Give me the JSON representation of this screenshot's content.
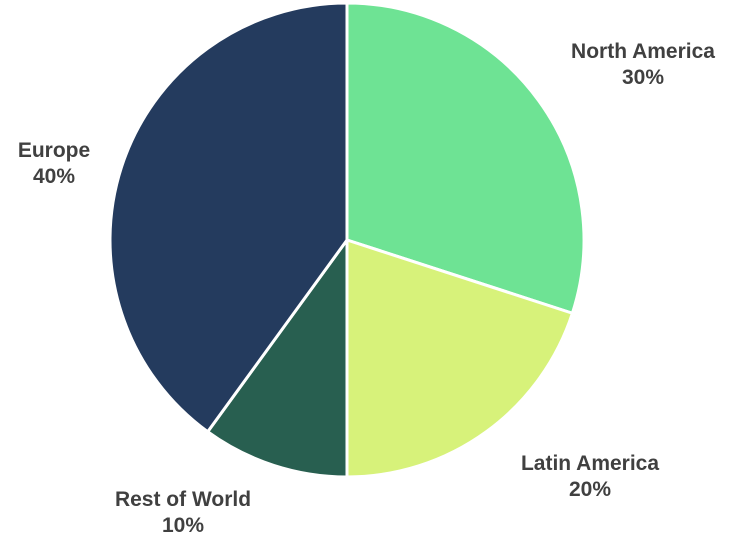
{
  "chart_data": {
    "type": "pie",
    "slices": [
      {
        "label": "North America",
        "value": 30,
        "value_label": "30%",
        "color": "#6ee394"
      },
      {
        "label": "Latin America",
        "value": 20,
        "value_label": "20%",
        "color": "#d7f27a"
      },
      {
        "label": "Rest of World",
        "value": 10,
        "value_label": "10%",
        "color": "#285f50"
      },
      {
        "label": "Europe",
        "value": 40,
        "value_label": "40%",
        "color": "#243b5e"
      }
    ],
    "start_angle_deg": 0,
    "direction": "clockwise",
    "legend": "none",
    "labels": "outside"
  }
}
